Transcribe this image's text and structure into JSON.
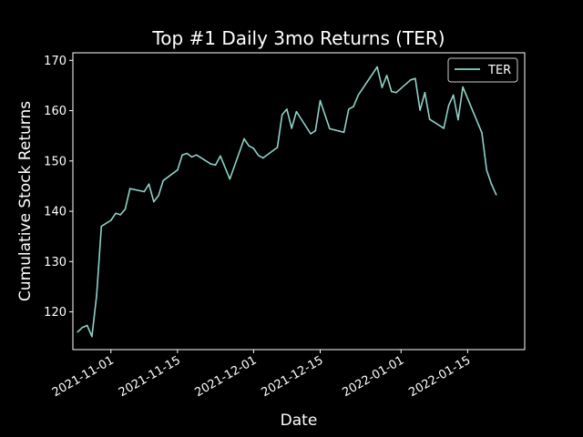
{
  "chart_data": {
    "type": "line",
    "title": "Top #1 Daily 3mo Returns (TER)",
    "xlabel": "Date",
    "ylabel": "Cumulative Stock Returns",
    "x_tick_labels": [
      "2021-11-01",
      "2021-11-15",
      "2021-12-01",
      "2021-12-15",
      "2022-01-01",
      "2022-01-15"
    ],
    "x_ticks": [
      "2021-11-01",
      "2021-11-15",
      "2021-12-01",
      "2021-12-15",
      "2022-01-01",
      "2022-01-15"
    ],
    "y_ticks": [
      120,
      130,
      140,
      150,
      160,
      170
    ],
    "xlim": [
      "2021-10-24",
      "2022-01-27"
    ],
    "ylim": [
      112.5,
      171.5
    ],
    "grid": false,
    "legend": {
      "placement": "top-right",
      "entries": [
        "TER"
      ]
    },
    "colors": {
      "background": "#000000",
      "axes": "#ffffff",
      "series": "#8dd3c7"
    },
    "series": [
      {
        "name": "TER",
        "x": [
          "2021-10-25",
          "2021-10-26",
          "2021-10-27",
          "2021-10-28",
          "2021-10-29",
          "2021-10-30",
          "2021-11-01",
          "2021-11-02",
          "2021-11-03",
          "2021-11-04",
          "2021-11-05",
          "2021-11-08",
          "2021-11-09",
          "2021-11-10",
          "2021-11-11",
          "2021-11-12",
          "2021-11-15",
          "2021-11-16",
          "2021-11-17",
          "2021-11-18",
          "2021-11-19",
          "2021-11-22",
          "2021-11-23",
          "2021-11-24",
          "2021-11-26",
          "2021-11-29",
          "2021-11-30",
          "2021-12-01",
          "2021-12-02",
          "2021-12-03",
          "2021-12-06",
          "2021-12-07",
          "2021-12-08",
          "2021-12-09",
          "2021-12-10",
          "2021-12-13",
          "2021-12-14",
          "2021-12-15",
          "2021-12-16",
          "2021-12-17",
          "2021-12-20",
          "2021-12-21",
          "2021-12-22",
          "2021-12-23",
          "2021-12-27",
          "2021-12-28",
          "2021-12-29",
          "2021-12-30",
          "2021-12-31",
          "2022-01-03",
          "2022-01-04",
          "2022-01-05",
          "2022-01-06",
          "2022-01-07",
          "2022-01-10",
          "2022-01-11",
          "2022-01-12",
          "2022-01-13",
          "2022-01-14",
          "2022-01-18",
          "2022-01-19",
          "2022-01-20",
          "2022-01-21"
        ],
        "values": [
          116.0,
          116.9,
          117.3,
          115.1,
          123.3,
          137.0,
          138.2,
          139.6,
          139.3,
          140.4,
          144.5,
          143.9,
          145.4,
          141.9,
          143.1,
          146.1,
          148.2,
          151.2,
          151.5,
          150.8,
          151.2,
          149.4,
          149.2,
          151.0,
          146.4,
          154.4,
          153.0,
          152.5,
          151.1,
          150.6,
          152.7,
          159.2,
          160.3,
          156.5,
          159.8,
          155.4,
          156.0,
          162.0,
          159.2,
          156.4,
          155.7,
          160.3,
          160.8,
          163.1,
          168.7,
          164.6,
          167.0,
          163.8,
          163.6,
          166.1,
          166.4,
          160.1,
          163.6,
          158.3,
          156.5,
          161.0,
          163.1,
          158.2,
          164.7,
          155.6,
          148.2,
          145.4,
          143.3
        ]
      }
    ]
  }
}
